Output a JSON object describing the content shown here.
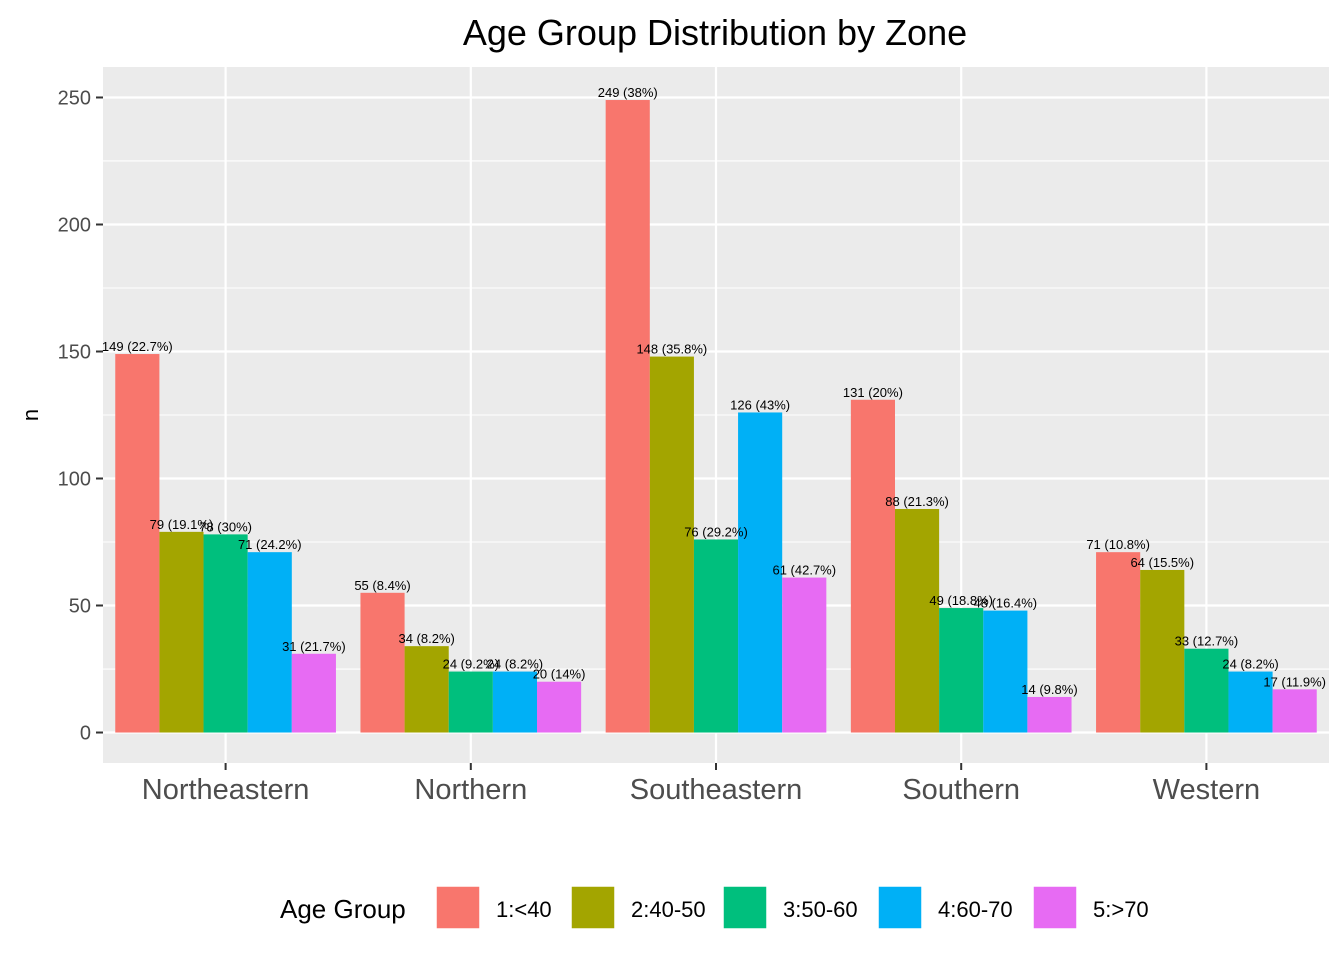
{
  "chart_data": {
    "type": "bar",
    "title": "Age Group Distribution by Zone",
    "xlabel": "",
    "ylabel": "n",
    "ylim": [
      -12,
      262
    ],
    "yticks": [
      0,
      50,
      100,
      150,
      200,
      250
    ],
    "grid": true,
    "legend_position": "bottom",
    "legend_title": "Age Group",
    "categories": [
      "Northeastern",
      "Northern",
      "Southeastern",
      "Southern",
      "Western"
    ],
    "series": [
      {
        "name": "1:<40",
        "color": "#F8766D",
        "values": [
          149,
          55,
          249,
          131,
          71
        ],
        "labels": [
          "149 (22.7%)",
          "55 (8.4%)",
          "249 (38%)",
          "131 (20%)",
          "71 (10.8%)"
        ]
      },
      {
        "name": "2:40-50",
        "color": "#A3A500",
        "values": [
          79,
          34,
          148,
          88,
          64
        ],
        "labels": [
          "79 (19.1%)",
          "34 (8.2%)",
          "148 (35.8%)",
          "88 (21.3%)",
          "64 (15.5%)"
        ]
      },
      {
        "name": "3:50-60",
        "color": "#00BF7D",
        "values": [
          78,
          24,
          76,
          49,
          33
        ],
        "labels": [
          "78 (30%)",
          "24 (9.2%)",
          "76 (29.2%)",
          "49 (18.8%)",
          "33 (12.7%)"
        ]
      },
      {
        "name": "4:60-70",
        "color": "#00B0F6",
        "values": [
          71,
          24,
          126,
          48,
          24
        ],
        "labels": [
          "71 (24.2%)",
          "24 (8.2%)",
          "126 (43%)",
          "48 (16.4%)",
          "24 (8.2%)"
        ]
      },
      {
        "name": "5:>70",
        "color": "#E76BF3",
        "values": [
          31,
          20,
          61,
          14,
          17
        ],
        "labels": [
          "31 (21.7%)",
          "20 (14%)",
          "61 (42.7%)",
          "14 (9.8%)",
          "17 (11.9%)"
        ]
      }
    ]
  }
}
